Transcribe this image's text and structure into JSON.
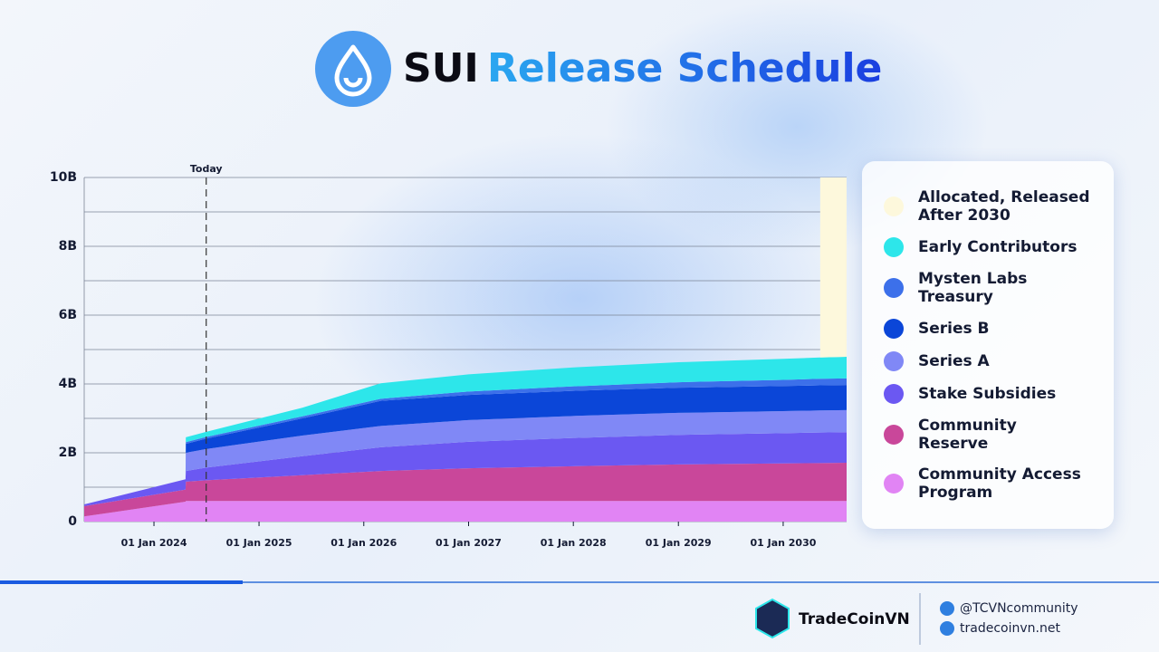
{
  "header": {
    "brand": "SUI",
    "title": "Release Schedule"
  },
  "chart_data": {
    "type": "stacked_area",
    "x": [
      "2023-05-03",
      "2024-04-20",
      "2024-04-21",
      "2024-07-01",
      "2025-06-01",
      "2026-03-01",
      "2027-01-01",
      "2028-01-01",
      "2029-01-01",
      "2030-01-01",
      "2030-05-10",
      "2030-08-10"
    ],
    "xlim": [
      "2023-05-03",
      "2030-08-10"
    ],
    "xticks": [
      {
        "value": "2024-01-01",
        "label": "01 Jan 2024"
      },
      {
        "value": "2025-01-01",
        "label": "01 Jan 2025"
      },
      {
        "value": "2026-01-01",
        "label": "01 Jan 2026"
      },
      {
        "value": "2027-01-01",
        "label": "01 Jan 2027"
      },
      {
        "value": "2028-01-01",
        "label": "01 Jan 2028"
      },
      {
        "value": "2029-01-01",
        "label": "01 Jan 2029"
      },
      {
        "value": "2030-01-01",
        "label": "01 Jan 2030"
      }
    ],
    "ylim": [
      0,
      10
    ],
    "yticks": [
      0,
      {
        "value": 2,
        "label": "2B"
      },
      {
        "value": 4,
        "label": "4B"
      },
      {
        "value": 6,
        "label": "6B"
      },
      {
        "value": 8,
        "label": "8B"
      },
      {
        "value": 10,
        "label": "10B"
      }
    ],
    "yminor": [
      1,
      3,
      5,
      7,
      9
    ],
    "grid": true,
    "annotations": [
      {
        "text": "Today",
        "x": "2024-07-01"
      }
    ],
    "series": [
      {
        "name": "Community Access Program",
        "color": "#e184f4",
        "values": [
          0.15,
          0.58,
          0.6,
          0.6,
          0.6,
          0.6,
          0.6,
          0.6,
          0.6,
          0.6,
          0.6,
          0.6
        ]
      },
      {
        "name": "Community Reserve",
        "color": "#c9479a",
        "values": [
          0.3,
          0.35,
          0.56,
          0.6,
          0.75,
          0.87,
          0.95,
          1.01,
          1.06,
          1.09,
          1.1,
          1.11
        ]
      },
      {
        "name": "Stake Subsidies",
        "color": "#6b58f2",
        "values": [
          0.05,
          0.3,
          0.31,
          0.37,
          0.55,
          0.69,
          0.77,
          0.82,
          0.86,
          0.88,
          0.89,
          0.89
        ]
      },
      {
        "name": "Series A",
        "color": "#8088f6",
        "values": [
          0,
          0,
          0.53,
          0.54,
          0.6,
          0.62,
          0.63,
          0.64,
          0.64,
          0.64,
          0.64,
          0.64
        ]
      },
      {
        "name": "Series B",
        "color": "#0b46d8",
        "values": [
          0,
          0,
          0.26,
          0.3,
          0.5,
          0.73,
          0.73,
          0.73,
          0.73,
          0.73,
          0.73,
          0.73
        ]
      },
      {
        "name": "Mysten Labs Treasury",
        "color": "#3c70ea",
        "values": [
          0,
          0,
          0.05,
          0.05,
          0.06,
          0.06,
          0.1,
          0.13,
          0.16,
          0.18,
          0.19,
          0.19
        ]
      },
      {
        "name": "Early Contributors",
        "color": "#2de6ea",
        "values": [
          0,
          0,
          0.14,
          0.15,
          0.25,
          0.45,
          0.5,
          0.55,
          0.58,
          0.61,
          0.62,
          0.63
        ]
      },
      {
        "name": "Allocated, Released After 2030",
        "color": "#fdf8dc",
        "values": [
          null,
          null,
          null,
          null,
          null,
          null,
          null,
          null,
          null,
          null,
          5.23,
          5.21
        ]
      }
    ]
  },
  "footer": {
    "brand": "TradeCoinVN",
    "twitter": "@TCVNcommunity",
    "website": "tradecoinvn.net"
  }
}
